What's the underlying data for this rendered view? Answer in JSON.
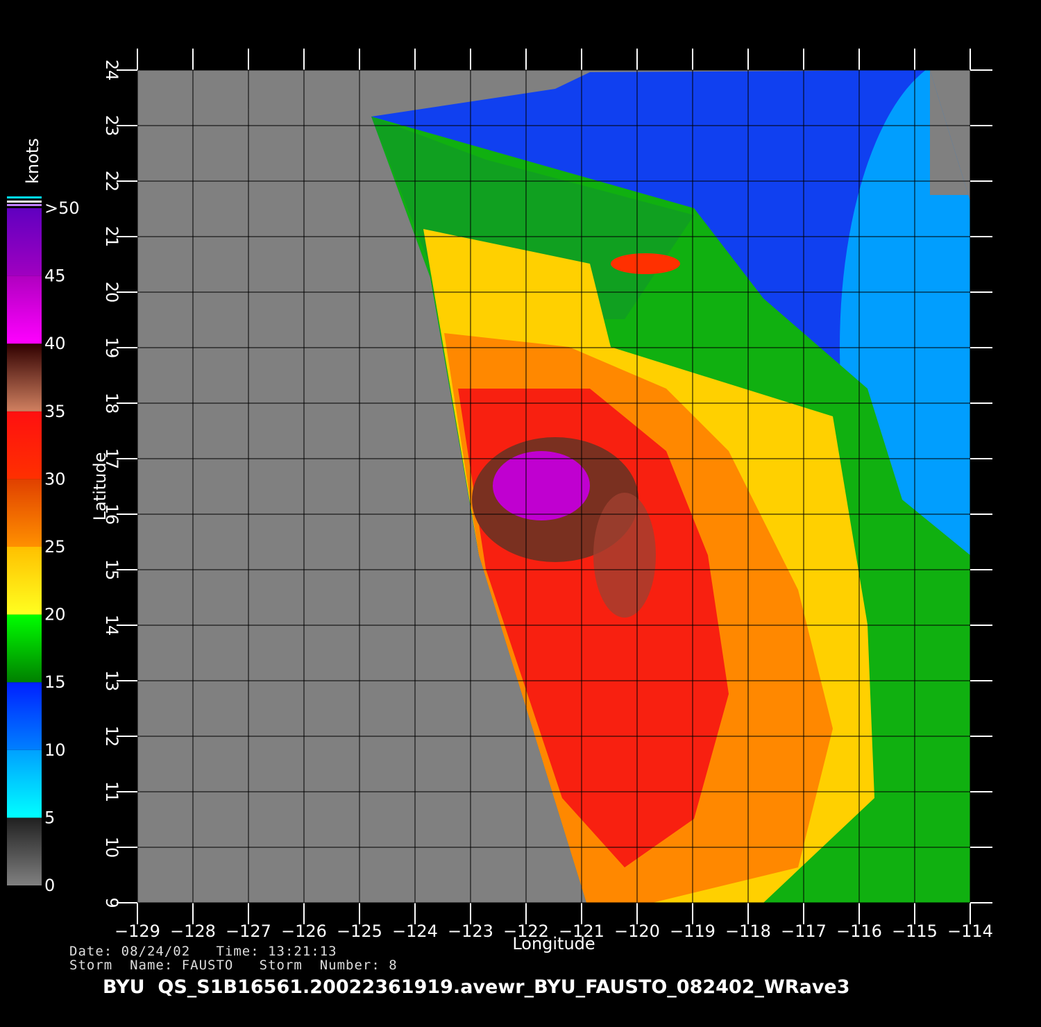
{
  "map": {
    "x_label": "Longitude",
    "y_label": "Latitude",
    "lon_ticks": [
      {
        "value": -129,
        "label": "−129"
      },
      {
        "value": -128,
        "label": "−128"
      },
      {
        "value": -127,
        "label": "−127"
      },
      {
        "value": -126,
        "label": "−126"
      },
      {
        "value": -125,
        "label": "−125"
      },
      {
        "value": -124,
        "label": "−124"
      },
      {
        "value": -123,
        "label": "−123"
      },
      {
        "value": -122,
        "label": "−122"
      },
      {
        "value": -121,
        "label": "−121"
      },
      {
        "value": -120,
        "label": "−120"
      },
      {
        "value": -119,
        "label": "−119"
      },
      {
        "value": -118,
        "label": "−118"
      },
      {
        "value": -117,
        "label": "−117"
      },
      {
        "value": -116,
        "label": "−116"
      },
      {
        "value": -115,
        "label": "−115"
      },
      {
        "value": -114,
        "label": "−114"
      }
    ],
    "lat_ticks": [
      9,
      10,
      11,
      12,
      13,
      14,
      15,
      16,
      17,
      18,
      19,
      20,
      21,
      22,
      23,
      24
    ],
    "colorbar": {
      "title": "knots",
      "ticks": [
        0,
        5,
        10,
        15,
        20,
        25,
        30,
        35,
        40,
        45,
        {
          "value": 50,
          "label": ">50"
        }
      ]
    }
  },
  "footer": {
    "date_time": "Date: 08/24/02   Time: 13:21:13",
    "storm": "Storm  Name: FAUSTO   Storm  Number: 8",
    "file": "BYU  QS_S1B16561.20022361919.avewr_BYU_FAUSTO_082402_WRave3"
  }
}
